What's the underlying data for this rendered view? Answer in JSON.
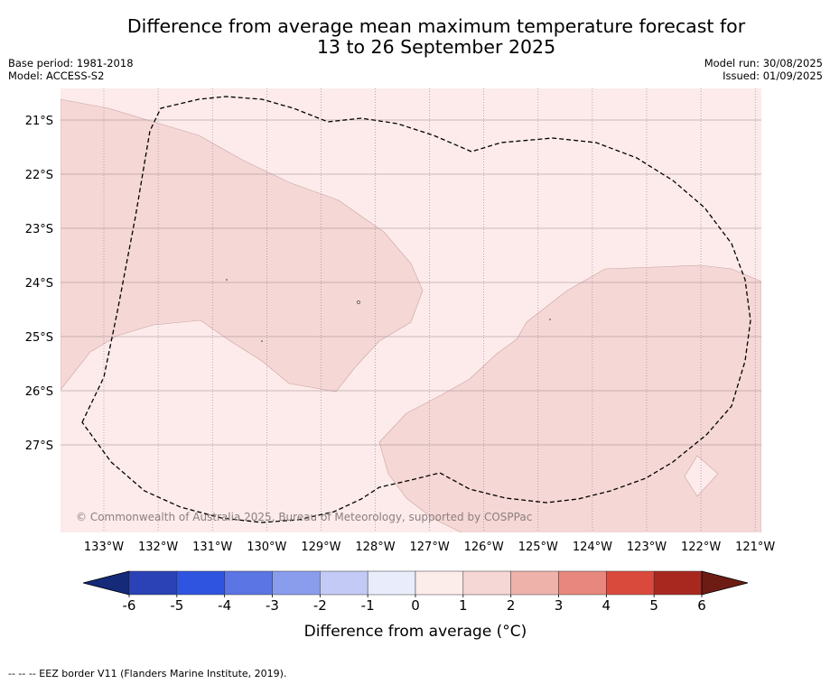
{
  "title_line1": "Difference from average mean maximum temperature forecast for",
  "title_line2": "13 to 26 September 2025",
  "base_period": "Base period: 1981-2018",
  "model": "Model: ACCESS-S2",
  "model_run": "Model run: 30/08/2025",
  "issued": "Issued: 01/09/2025",
  "credit": "© Commonwealth of Australia 2025, Bureau of Meteorology, supported by COSPPac",
  "footer": "--  --  -- EEZ border V11 (Flanders Marine Institute, 2019).",
  "lat_labels": [
    "21°S",
    "22°S",
    "23°S",
    "24°S",
    "25°S",
    "26°S",
    "27°S"
  ],
  "lon_labels": [
    "133°W",
    "132°W",
    "131°W",
    "130°W",
    "129°W",
    "128°W",
    "127°W",
    "126°W",
    "125°W",
    "124°W",
    "123°W",
    "122°W",
    "121°W"
  ],
  "colorbar": {
    "title": "Difference from average (°C)",
    "ticks": [
      "-6",
      "-5",
      "-4",
      "-3",
      "-2",
      "-1",
      "0",
      "1",
      "2",
      "3",
      "4",
      "5",
      "6"
    ],
    "colors": [
      "#152a78",
      "#2a42b5",
      "#2f55e0",
      "#5b75e4",
      "#8a9cec",
      "#c2caf5",
      "#e9ecfb",
      "#fcecea",
      "#f5d7d5",
      "#eeb2ab",
      "#e8877e",
      "#da4a3c",
      "#a82820",
      "#6d1c14"
    ]
  },
  "map_colors": {
    "background": "#fcebea",
    "warm_region": "#f5d7d5",
    "region_edge": "#c9a5a3",
    "grid": "#888888"
  }
}
